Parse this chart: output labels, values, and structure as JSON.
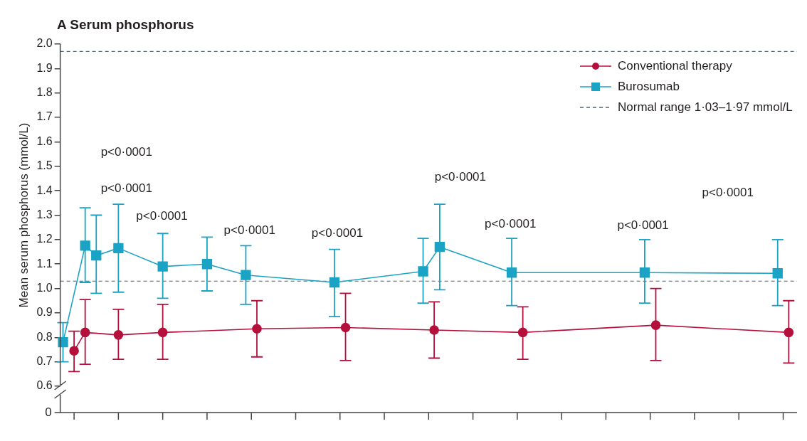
{
  "chart_data": {
    "type": "line",
    "title": "A Serum phosphorus",
    "ylabel": "Mean serum phosphorus (mmol/L)",
    "categories": [
      null,
      null,
      null,
      null,
      null,
      null,
      null,
      null,
      null,
      null,
      null,
      null,
      null,
      null,
      null,
      null,
      null,
      null,
      null,
      null,
      null,
      null,
      null,
      null,
      null,
      null,
      null,
      null,
      null,
      null,
      null,
      null,
      null,
      null,
      null,
      null,
      null,
      null,
      null,
      null,
      null,
      null,
      null,
      null,
      null,
      null,
      null,
      null,
      null,
      null,
      null,
      null,
      null,
      null,
      null,
      null,
      null,
      null,
      null,
      null,
      null,
      null,
      null,
      null,
      null,
      null,
      null,
      null,
      null,
      null,
      null,
      null,
      null,
      null,
      null,
      null,
      null,
      null,
      null,
      null,
      null,
      null,
      null,
      null,
      null,
      null,
      null,
      null,
      null,
      null,
      null,
      null,
      null,
      null,
      null,
      null,
      null,
      null,
      null,
      null,
      null,
      null,
      null,
      null,
      null,
      null,
      null,
      null,
      null,
      null,
      null,
      null,
      null,
      null,
      null,
      null,
      null,
      null,
      null,
      null,
      null,
      null,
      null,
      null,
      null,
      null,
      null,
      null,
      null,
      null,
      null,
      null,
      null
    ],
    "ylim": [
      0.6,
      2.0
    ],
    "yticks": [
      0.6,
      0.7,
      0.8,
      0.9,
      {
        "value": 1.0,
        "label": "1.0"
      },
      1.1,
      1.2,
      1.3,
      1.4,
      1.5,
      1.6,
      1.7,
      1.8,
      1.9,
      {
        "value": 2.0,
        "label": "2.0"
      }
    ],
    "tick_labels": "y",
    "grid": false,
    "legend": "top right",
    "series": [
      {
        "name": "Conventional therapy",
        "color": "#b5103c",
        "marker": "circle",
        "values": [
          null,
          null,
          0.745,
          null,
          0.82,
          null,
          null,
          null,
          null,
          null,
          0.81,
          null,
          null,
          null,
          null,
          null,
          null,
          null,
          0.82,
          null,
          null,
          null,
          null,
          null,
          null,
          null,
          null,
          null,
          null,
          null,
          null,
          null,
          null,
          null,
          null,
          0.835,
          null,
          null,
          null,
          null,
          null,
          null,
          null,
          null,
          null,
          null,
          null,
          null,
          null,
          null,
          null,
          0.84,
          null,
          null,
          null,
          null,
          null,
          null,
          null,
          null,
          null,
          null,
          null,
          null,
          null,
          null,
          null,
          0.83,
          null,
          null,
          null,
          null,
          null,
          null,
          null,
          null,
          null,
          null,
          null,
          null,
          null,
          null,
          null,
          0.82,
          null,
          null,
          null,
          null,
          null,
          null,
          null,
          null,
          null,
          null,
          null,
          null,
          null,
          null,
          null,
          null,
          null,
          null,
          null,
          null,
          null,
          null,
          null,
          0.85,
          null,
          null,
          null,
          null,
          null,
          null,
          null,
          null,
          null,
          null,
          null,
          null,
          null,
          null,
          null,
          null,
          null,
          null,
          null,
          null,
          null,
          null,
          null,
          0.82,
          null
        ],
        "errors": [
          null,
          null,
          [
            0.66,
            0.825
          ],
          null,
          [
            0.69,
            0.955
          ],
          null,
          null,
          null,
          null,
          null,
          [
            0.71,
            0.915
          ],
          null,
          null,
          null,
          null,
          null,
          null,
          null,
          [
            0.71,
            0.935
          ],
          null,
          null,
          null,
          null,
          null,
          null,
          null,
          null,
          null,
          null,
          null,
          null,
          null,
          null,
          null,
          null,
          [
            0.72,
            0.95
          ],
          null,
          null,
          null,
          null,
          null,
          null,
          null,
          null,
          null,
          null,
          null,
          null,
          null,
          null,
          null,
          [
            0.705,
            0.98
          ],
          null,
          null,
          null,
          null,
          null,
          null,
          null,
          null,
          null,
          null,
          null,
          null,
          null,
          null,
          null,
          [
            0.715,
            0.945
          ],
          null,
          null,
          null,
          null,
          null,
          null,
          null,
          null,
          null,
          null,
          null,
          null,
          null,
          null,
          null,
          [
            0.71,
            0.925
          ],
          null,
          null,
          null,
          null,
          null,
          null,
          null,
          null,
          null,
          null,
          null,
          null,
          null,
          null,
          null,
          null,
          null,
          null,
          null,
          null,
          null,
          null,
          null,
          [
            0.705,
            1.0
          ],
          null,
          null,
          null,
          null,
          null,
          null,
          null,
          null,
          null,
          null,
          null,
          null,
          null,
          null,
          null,
          null,
          null,
          null,
          null,
          null,
          null,
          null,
          null,
          [
            0.695,
            0.95
          ],
          null
        ]
      },
      {
        "name": "Burosumab",
        "color": "#1aa3c4",
        "marker": "square",
        "values": [
          0.78,
          null,
          null,
          null,
          1.175,
          null,
          1.135,
          null,
          null,
          null,
          1.165,
          null,
          null,
          null,
          null,
          null,
          null,
          null,
          1.09,
          null,
          null,
          null,
          null,
          null,
          null,
          null,
          1.1,
          null,
          null,
          null,
          null,
          null,
          null,
          1.055,
          null,
          null,
          null,
          null,
          null,
          null,
          null,
          null,
          null,
          null,
          null,
          null,
          null,
          null,
          null,
          1.025,
          null,
          null,
          null,
          null,
          null,
          null,
          null,
          null,
          null,
          null,
          null,
          null,
          null,
          null,
          null,
          1.07,
          null,
          null,
          1.17,
          null,
          null,
          null,
          null,
          null,
          null,
          null,
          null,
          null,
          null,
          null,
          null,
          1.065,
          null,
          null,
          null,
          null,
          null,
          null,
          null,
          null,
          null,
          null,
          null,
          null,
          null,
          null,
          null,
          null,
          null,
          null,
          null,
          null,
          null,
          null,
          null,
          1.065,
          null,
          null,
          null,
          null,
          null,
          null,
          null,
          null,
          null,
          null,
          null,
          null,
          null,
          null,
          null,
          null,
          null,
          null,
          null,
          null,
          null,
          null,
          null,
          1.062,
          null,
          null,
          null
        ],
        "errors": [
          [
            0.7,
            0.86
          ],
          null,
          null,
          null,
          [
            1.025,
            1.33
          ],
          null,
          [
            0.98,
            1.3
          ],
          null,
          null,
          null,
          [
            0.985,
            1.345
          ],
          null,
          null,
          null,
          null,
          null,
          null,
          null,
          [
            0.96,
            1.225
          ],
          null,
          null,
          null,
          null,
          null,
          null,
          null,
          [
            0.99,
            1.21
          ],
          null,
          null,
          null,
          null,
          null,
          null,
          [
            0.935,
            1.175
          ],
          null,
          null,
          null,
          null,
          null,
          null,
          null,
          null,
          null,
          null,
          null,
          null,
          null,
          null,
          null,
          [
            0.885,
            1.16
          ],
          null,
          null,
          null,
          null,
          null,
          null,
          null,
          null,
          null,
          null,
          null,
          null,
          null,
          null,
          null,
          [
            0.94,
            1.205
          ],
          null,
          null,
          [
            0.995,
            1.345
          ],
          null,
          null,
          null,
          null,
          null,
          null,
          null,
          null,
          null,
          null,
          null,
          null,
          [
            0.93,
            1.205
          ],
          null,
          null,
          null,
          null,
          null,
          null,
          null,
          null,
          null,
          null,
          null,
          null,
          null,
          null,
          null,
          null,
          null,
          null,
          null,
          null,
          null,
          null,
          null,
          [
            0.94,
            1.2
          ],
          null,
          null,
          null,
          null,
          null,
          null,
          null,
          null,
          null,
          null,
          null,
          null,
          null,
          null,
          null,
          null,
          null,
          null,
          null,
          null,
          null,
          null,
          null,
          [
            0.93,
            1.2
          ],
          null,
          null,
          null
        ]
      }
    ],
    "ref_lines": [
      {
        "axis": "y",
        "value": 1.97,
        "label": "Normal range 1·03–1·97 mmol/L",
        "color": "#4a6670",
        "line_style": "dashed"
      },
      {
        "axis": "y",
        "value": 1.03,
        "label": null,
        "color": "#4a6670",
        "line_style": "dashed"
      }
    ],
    "annotations": [
      "0",
      "p<0·0001",
      "p<0·0001",
      "p<0·0001",
      "p<0·0001",
      "p<0·0001",
      "p<0·0001",
      "p<0·0001",
      "p<0·0001",
      "p<0·0001"
    ]
  }
}
